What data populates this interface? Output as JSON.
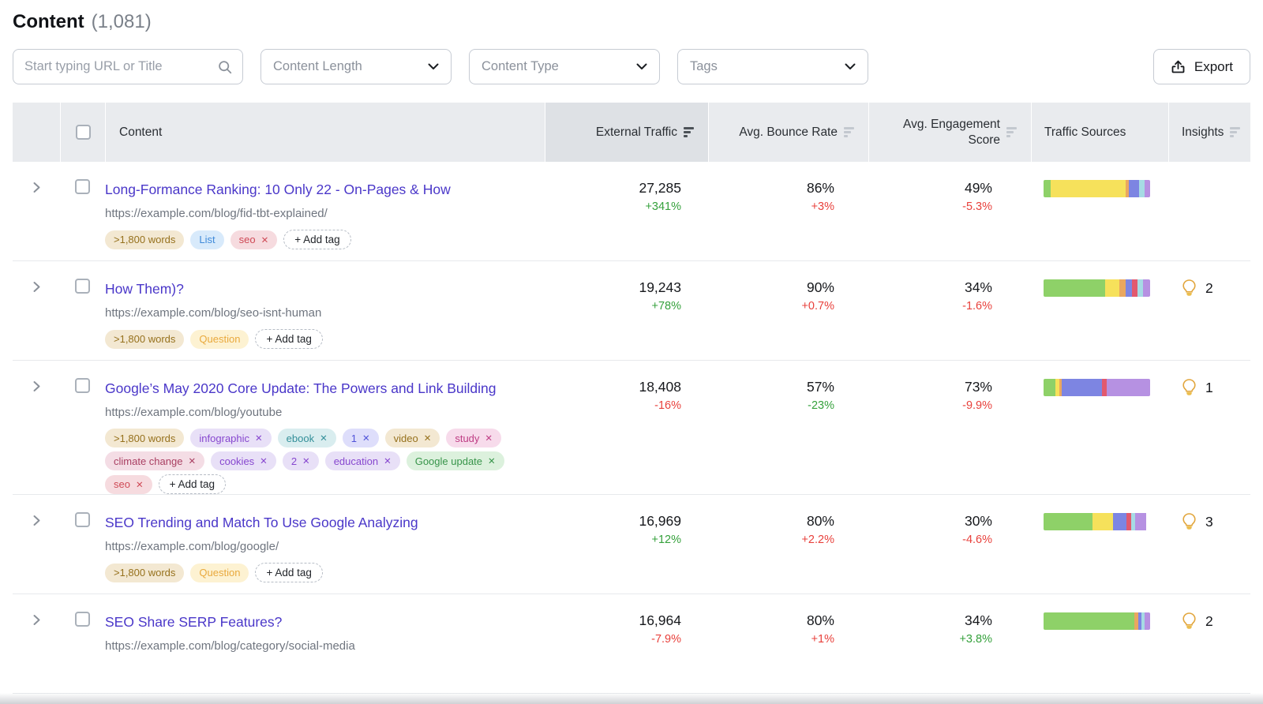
{
  "page": {
    "title": "Content",
    "count": "(1,081)"
  },
  "filters": {
    "search": {
      "placeholder": "Start typing URL or Title",
      "icon": "search-icon",
      "value": ""
    },
    "content_length": {
      "label": "Content Length",
      "icon": "chevron-down-icon"
    },
    "content_type": {
      "label": "Content Type",
      "icon": "chevron-down-icon"
    },
    "tags": {
      "label": "Tags",
      "icon": "chevron-down-icon"
    },
    "export": {
      "label": "Export",
      "icon": "export-icon"
    }
  },
  "table": {
    "columns": {
      "content": "Content",
      "external_traffic": "External Traffic",
      "bounce": "Avg. Bounce Rate",
      "engagement": "Avg. Engagement Score",
      "sources": "Traffic Sources",
      "insights": "Insights"
    },
    "sorted_column": "external_traffic",
    "add_tag_label": "+ Add tag"
  },
  "colors": {
    "link": "#4a37c9",
    "positive": "#35a13c",
    "negative": "#e8413c",
    "bar": {
      "green": "#8ed168",
      "yellow": "#f6e15b",
      "orange": "#eaa75f",
      "blue": "#7d85e2",
      "red": "#e2596e",
      "cyan": "#a6dbe4",
      "purple": "#b691e2"
    }
  },
  "rows": [
    {
      "title": "Long-Formance Ranking: 10 Only 22 - On-Pages & How",
      "url": "https://example.com/blog/fid-tbt-explained/",
      "tags": [
        {
          "label": ">1,800 words",
          "style": "tan",
          "removable": false
        },
        {
          "label": "List",
          "style": "blue",
          "removable": false
        },
        {
          "label": "seo",
          "style": "pink",
          "removable": true
        }
      ],
      "external_traffic": {
        "value": "27,285",
        "change": "+341%",
        "dir": "green"
      },
      "bounce_rate": {
        "value": "86%",
        "change": "+3%",
        "dir": "red"
      },
      "engagement": {
        "value": "49%",
        "change": "-5.3%",
        "dir": "red"
      },
      "traffic_sources": [
        {
          "color": "green",
          "pct": 7
        },
        {
          "color": "yellow",
          "pct": 70
        },
        {
          "color": "orange",
          "pct": 3
        },
        {
          "color": "blue",
          "pct": 10
        },
        {
          "color": "cyan",
          "pct": 5
        },
        {
          "color": "purple",
          "pct": 5
        }
      ],
      "insights": null
    },
    {
      "title": "How Them)?",
      "url": "https://example.com/blog/seo-isnt-human",
      "tags": [
        {
          "label": ">1,800 words",
          "style": "tan",
          "removable": false
        },
        {
          "label": "Question",
          "style": "yellow",
          "removable": false
        }
      ],
      "external_traffic": {
        "value": "19,243",
        "change": "+78%",
        "dir": "green"
      },
      "bounce_rate": {
        "value": "90%",
        "change": "+0.7%",
        "dir": "red"
      },
      "engagement": {
        "value": "34%",
        "change": "-1.6%",
        "dir": "red"
      },
      "traffic_sources": [
        {
          "color": "green",
          "pct": 58
        },
        {
          "color": "yellow",
          "pct": 13
        },
        {
          "color": "orange",
          "pct": 6
        },
        {
          "color": "blue",
          "pct": 6
        },
        {
          "color": "red",
          "pct": 5
        },
        {
          "color": "cyan",
          "pct": 5
        },
        {
          "color": "purple",
          "pct": 7
        }
      ],
      "insights": "2"
    },
    {
      "title": "Google’s May 2020 Core Update: The Powers and Link Building",
      "url": "https://example.com/blog/youtube",
      "tags": [
        {
          "label": ">1,800 words",
          "style": "tan",
          "removable": false
        },
        {
          "label": "infographic",
          "style": "lavender",
          "removable": true
        },
        {
          "label": "ebook",
          "style": "teal",
          "removable": true
        },
        {
          "label": "1",
          "style": "indigo",
          "removable": true
        },
        {
          "label": "video",
          "style": "tan",
          "removable": true
        },
        {
          "label": "study",
          "style": "magenta",
          "removable": true
        },
        {
          "label": "climate change",
          "style": "maroon",
          "removable": true
        },
        {
          "label": "cookies",
          "style": "lavender",
          "removable": true
        },
        {
          "label": "2",
          "style": "lavender",
          "removable": true
        },
        {
          "label": "education",
          "style": "lavender",
          "removable": true
        },
        {
          "label": "Google update",
          "style": "green",
          "removable": true
        },
        {
          "label": "seo",
          "style": "pink",
          "removable": true
        }
      ],
      "external_traffic": {
        "value": "18,408",
        "change": "-16%",
        "dir": "red"
      },
      "bounce_rate": {
        "value": "57%",
        "change": "-23%",
        "dir": "green"
      },
      "engagement": {
        "value": "73%",
        "change": "-9.9%",
        "dir": "red"
      },
      "traffic_sources": [
        {
          "color": "green",
          "pct": 11
        },
        {
          "color": "yellow",
          "pct": 4
        },
        {
          "color": "orange",
          "pct": 2
        },
        {
          "color": "blue",
          "pct": 38
        },
        {
          "color": "red",
          "pct": 4
        },
        {
          "color": "purple",
          "pct": 41
        }
      ],
      "insights": "1"
    },
    {
      "title": "SEO Trending and Match To Use Google Analyzing",
      "url": "https://example.com/blog/google/",
      "tags": [
        {
          "label": ">1,800 words",
          "style": "tan",
          "removable": false
        },
        {
          "label": "Question",
          "style": "yellow",
          "removable": false
        }
      ],
      "external_traffic": {
        "value": "16,969",
        "change": "+12%",
        "dir": "green"
      },
      "bounce_rate": {
        "value": "80%",
        "change": "+2.2%",
        "dir": "red"
      },
      "engagement": {
        "value": "30%",
        "change": "-4.6%",
        "dir": "red"
      },
      "traffic_sources": [
        {
          "color": "green",
          "pct": 46
        },
        {
          "color": "yellow",
          "pct": 19
        },
        {
          "color": "blue",
          "pct": 13
        },
        {
          "color": "red",
          "pct": 4
        },
        {
          "color": "cyan",
          "pct": 4
        },
        {
          "color": "purple",
          "pct": 10
        }
      ],
      "insights": "3"
    },
    {
      "title": "SEO Share SERP Features?",
      "url": "https://example.com/blog/category/social-media",
      "tags": [],
      "external_traffic": {
        "value": "16,964",
        "change": "-7.9%",
        "dir": "red"
      },
      "bounce_rate": {
        "value": "80%",
        "change": "+1%",
        "dir": "red"
      },
      "engagement": {
        "value": "34%",
        "change": "+3.8%",
        "dir": "green"
      },
      "traffic_sources": [
        {
          "color": "green",
          "pct": 85
        },
        {
          "color": "orange",
          "pct": 4
        },
        {
          "color": "blue",
          "pct": 3
        },
        {
          "color": "cyan",
          "pct": 3
        },
        {
          "color": "purple",
          "pct": 5
        }
      ],
      "insights": "2"
    }
  ]
}
